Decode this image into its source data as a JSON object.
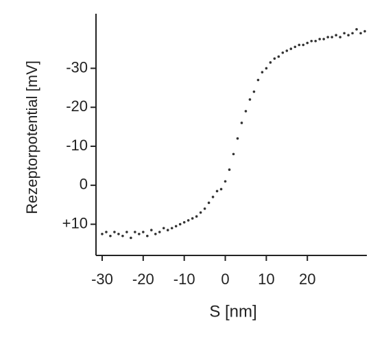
{
  "chart_data": {
    "type": "scatter",
    "x_label": "S [nm]",
    "y_label": "Rezeptorpotential [mV]",
    "xlim": [
      -31.5,
      34.5
    ],
    "ylim": [
      18,
      -44
    ],
    "xticks": [
      -30,
      -20,
      -10,
      0,
      10,
      20
    ],
    "yticks": [
      -30,
      -20,
      -10,
      0,
      {
        "value": 10,
        "label": "+10"
      }
    ],
    "color": "#333333",
    "series": [
      {
        "x": [
          -30,
          -29,
          -28,
          -27,
          -26,
          -25,
          -24,
          -23,
          -22,
          -21,
          -20,
          -19,
          -18,
          -17,
          -16,
          -15,
          -14,
          -13,
          -12,
          -11,
          -10,
          -9,
          -8,
          -7,
          -6,
          -5,
          -4,
          -3,
          -2,
          -1,
          0,
          1,
          2,
          3,
          4,
          5,
          6,
          7,
          8,
          9,
          10,
          11,
          12,
          13,
          14,
          15,
          16,
          17,
          18,
          19,
          20,
          21,
          22,
          23,
          24,
          25,
          26,
          27,
          28,
          29,
          30,
          31,
          32,
          33,
          34
        ],
        "values": [
          12.5,
          12,
          13,
          12,
          12.5,
          13,
          12,
          13.5,
          12,
          12.5,
          12,
          13,
          11.5,
          12.5,
          12,
          11,
          11.5,
          11,
          10.5,
          10,
          9.5,
          9,
          8.5,
          8,
          7,
          6,
          4.5,
          3,
          1.5,
          1,
          -1,
          -4,
          -8,
          -12,
          -16,
          -19,
          -22,
          -24,
          -27,
          -29,
          -30,
          -31.5,
          -32.5,
          -33,
          -34,
          -34.5,
          -35,
          -35.5,
          -36,
          -36,
          -36.5,
          -37,
          -37,
          -37.5,
          -37.5,
          -38,
          -38,
          -38.5,
          -38,
          -39,
          -38.5,
          -39,
          -40,
          -39,
          -39.5
        ]
      }
    ]
  }
}
